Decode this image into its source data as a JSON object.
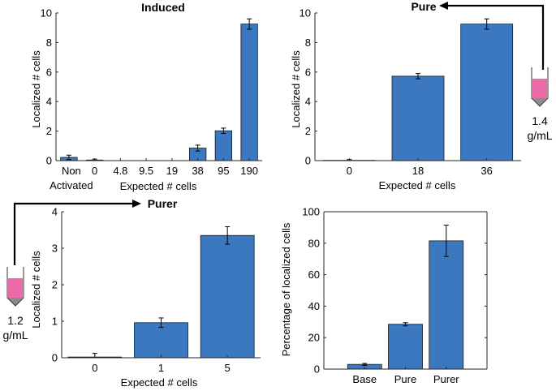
{
  "colors": {
    "bar": "#3b78c0",
    "bar_edge": "#1a1a1a",
    "axis": "#262626",
    "tube_liquid": "#ec6aa8",
    "arrow": "#000000"
  },
  "chart_data": [
    {
      "type": "bar",
      "title": "Induced",
      "categories": [
        "Non Activated",
        "0",
        "4.8",
        "9.5",
        "19",
        "38",
        "95",
        "190"
      ],
      "category_lines": [
        [
          "Non",
          "Activated"
        ],
        [
          "0"
        ],
        [
          "4.8"
        ],
        [
          "9.5"
        ],
        [
          "19"
        ],
        [
          "38"
        ],
        [
          "95"
        ],
        [
          "190"
        ]
      ],
      "values": [
        0.22,
        0.04,
        0,
        0,
        0,
        0.85,
        2.02,
        9.25
      ],
      "errors": [
        0.15,
        0.06,
        0,
        0,
        0,
        0.2,
        0.18,
        0.35
      ],
      "xlabel": "Expected # cells",
      "ylabel": "Localized # cells",
      "ylim": [
        0,
        10
      ],
      "yticks": [
        "0",
        "2",
        "4",
        "6",
        "8",
        "10"
      ],
      "box": false
    },
    {
      "type": "bar",
      "title": "Pure",
      "categories": [
        "0",
        "18",
        "36"
      ],
      "category_lines": [
        [
          "0"
        ],
        [
          "18"
        ],
        [
          "36"
        ]
      ],
      "values": [
        0.02,
        5.72,
        9.25
      ],
      "errors": [
        0.05,
        0.18,
        0.35
      ],
      "xlabel": "Expected # cells",
      "ylabel": "Localized # cells",
      "ylim": [
        0,
        10
      ],
      "yticks": [
        "0",
        "2",
        "4",
        "6",
        "8",
        "10"
      ],
      "box": false
    },
    {
      "type": "bar",
      "title": "Purer",
      "categories": [
        "0",
        "1",
        "5"
      ],
      "category_lines": [
        [
          "0"
        ],
        [
          "1"
        ],
        [
          "5"
        ]
      ],
      "values": [
        0.02,
        0.96,
        3.35
      ],
      "errors": [
        0.1,
        0.13,
        0.24
      ],
      "xlabel": "Expected # cells",
      "ylabel": "Localized # cells",
      "ylim": [
        0,
        4
      ],
      "yticks": [
        "0",
        "1",
        "2",
        "3",
        "4"
      ],
      "box": false
    },
    {
      "type": "bar",
      "title": "",
      "categories": [
        "Base",
        "Pure",
        "Purer"
      ],
      "category_lines": [
        [
          "Base"
        ],
        [
          "Pure"
        ],
        [
          "Purer"
        ]
      ],
      "values": [
        3.0,
        28.5,
        81.5
      ],
      "errors": [
        0.6,
        1.0,
        10.0
      ],
      "xlabel": "",
      "ylabel": "Percentage of localized cells",
      "ylim": [
        0,
        100
      ],
      "yticks": [
        "0",
        "20",
        "40",
        "60",
        "80",
        "100"
      ],
      "box": true
    }
  ],
  "annotations": {
    "tube_pure_label_1": "1.4",
    "tube_pure_label_2": "g/mL",
    "tube_purer_label_1": "1.2",
    "tube_purer_label_2": "g/mL"
  }
}
